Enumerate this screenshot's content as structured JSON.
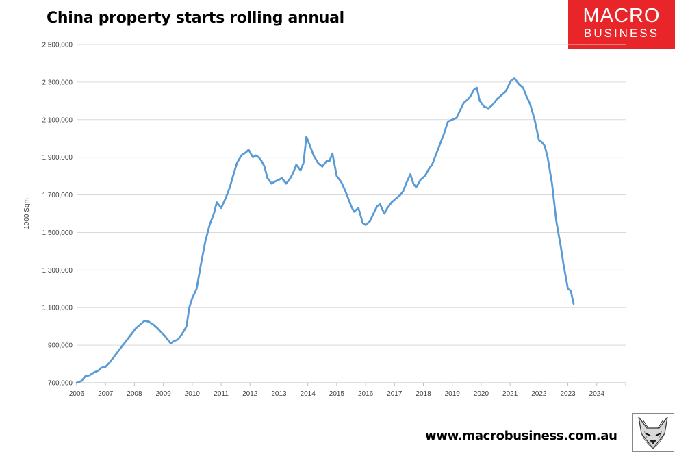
{
  "title": "China property starts rolling annual",
  "logo": {
    "line1": "MACRO",
    "line2": "BUSINESS",
    "color": "#e8262a"
  },
  "footer": {
    "url": "www.macrobusiness.com.au"
  },
  "mascot": {
    "icon": "fox-mascot-icon"
  },
  "chart_data": {
    "type": "line",
    "title": "China property starts rolling annual",
    "xlabel": "",
    "ylabel": "1000 Sqm",
    "xlim": [
      2006,
      2025
    ],
    "ylim": [
      700000,
      2500000
    ],
    "yticks": [
      700000,
      900000,
      1100000,
      1300000,
      1500000,
      1700000,
      1900000,
      2100000,
      2300000,
      2500000
    ],
    "ytick_labels": [
      "700,000",
      "900,000",
      "1,100,000",
      "1,300,000",
      "1,500,000",
      "1,700,000",
      "1,900,000",
      "2,100,000",
      "2,300,000",
      "2,500,000"
    ],
    "xticks": [
      2006,
      2007,
      2008,
      2009,
      2010,
      2011,
      2012,
      2013,
      2014,
      2015,
      2016,
      2017,
      2018,
      2019,
      2020,
      2021,
      2022,
      2023,
      2024
    ],
    "xtick_labels": [
      "2006",
      "2007",
      "2008",
      "2009",
      "2010",
      "2011",
      "2012",
      "2013",
      "2014",
      "2015",
      "2016",
      "2017",
      "2018",
      "2019",
      "2020",
      "2021",
      "2022",
      "2023",
      "2024"
    ],
    "grid": "horizontal",
    "legend": "none",
    "line_color": "#5b9bd5",
    "series": [
      {
        "x": [
          2006.0,
          2006.17,
          2006.3,
          2006.45,
          2006.6,
          2006.75,
          2006.85,
          2007.0,
          2007.15,
          2007.3,
          2007.45,
          2007.6,
          2007.75,
          2007.9,
          2008.05,
          2008.2,
          2008.35,
          2008.5,
          2008.65,
          2008.8,
          2008.95,
          2009.05,
          2009.15,
          2009.25,
          2009.35,
          2009.5,
          2009.65,
          2009.8,
          2009.9,
          2010.0,
          2010.15,
          2010.3,
          2010.45,
          2010.6,
          2010.75,
          2010.85,
          2011.0,
          2011.15,
          2011.3,
          2011.45,
          2011.55,
          2011.7,
          2011.85,
          2011.95,
          2012.1,
          2012.2,
          2012.3,
          2012.4,
          2012.5,
          2012.6,
          2012.75,
          2012.85,
          2013.0,
          2013.1,
          2013.25,
          2013.4,
          2013.5,
          2013.6,
          2013.75,
          2013.85,
          2013.95,
          2014.1,
          2014.2,
          2014.35,
          2014.5,
          2014.65,
          2014.75,
          2014.85,
          2015.0,
          2015.15,
          2015.3,
          2015.4,
          2015.5,
          2015.6,
          2015.75,
          2015.9,
          2016.0,
          2016.15,
          2016.3,
          2016.4,
          2016.5,
          2016.65,
          2016.75,
          2016.9,
          2017.05,
          2017.2,
          2017.3,
          2017.4,
          2017.55,
          2017.65,
          2017.75,
          2017.9,
          2018.05,
          2018.2,
          2018.3,
          2018.4,
          2018.55,
          2018.7,
          2018.85,
          2019.0,
          2019.15,
          2019.3,
          2019.4,
          2019.55,
          2019.65,
          2019.75,
          2019.85,
          2019.95,
          2020.1,
          2020.25,
          2020.4,
          2020.55,
          2020.7,
          2020.85,
          2021.0,
          2021.05,
          2021.15,
          2021.3,
          2021.45,
          2021.55,
          2021.7,
          2021.85,
          2022.0,
          2022.1,
          2022.2,
          2022.3,
          2022.45,
          2022.6,
          2022.75,
          2022.85,
          2023.0,
          2023.1,
          2023.2
        ],
        "y": [
          690000,
          710000,
          735000,
          740000,
          755000,
          765000,
          780000,
          785000,
          810000,
          840000,
          870000,
          900000,
          930000,
          960000,
          990000,
          1010000,
          1030000,
          1025000,
          1010000,
          990000,
          965000,
          950000,
          930000,
          910000,
          920000,
          930000,
          960000,
          1000000,
          1100000,
          1150000,
          1200000,
          1330000,
          1450000,
          1540000,
          1600000,
          1660000,
          1630000,
          1680000,
          1740000,
          1820000,
          1870000,
          1910000,
          1925000,
          1940000,
          1900000,
          1910000,
          1900000,
          1880000,
          1850000,
          1790000,
          1760000,
          1770000,
          1780000,
          1790000,
          1760000,
          1790000,
          1820000,
          1860000,
          1830000,
          1870000,
          2010000,
          1950000,
          1910000,
          1870000,
          1850000,
          1880000,
          1880000,
          1920000,
          1800000,
          1770000,
          1720000,
          1680000,
          1640000,
          1610000,
          1630000,
          1550000,
          1540000,
          1560000,
          1610000,
          1640000,
          1650000,
          1600000,
          1630000,
          1660000,
          1680000,
          1700000,
          1720000,
          1760000,
          1810000,
          1760000,
          1740000,
          1780000,
          1800000,
          1840000,
          1860000,
          1900000,
          1960000,
          2020000,
          2090000,
          2100000,
          2110000,
          2160000,
          2190000,
          2210000,
          2230000,
          2260000,
          2270000,
          2200000,
          2170000,
          2160000,
          2180000,
          2210000,
          2230000,
          2250000,
          2300000,
          2310000,
          2320000,
          2290000,
          2270000,
          2230000,
          2180000,
          2100000,
          1990000,
          1980000,
          1960000,
          1900000,
          1760000,
          1560000,
          1430000,
          1330000,
          1200000,
          1190000,
          1120000
        ]
      }
    ]
  }
}
